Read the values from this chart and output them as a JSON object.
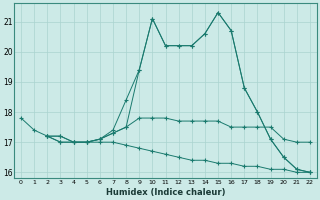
{
  "xlabel": "Humidex (Indice chaleur)",
  "ylabel": "",
  "background_color": "#cceae7",
  "grid_color": "#aad4d0",
  "line_color": "#1a7a6e",
  "xlim": [
    -0.5,
    22.5
  ],
  "ylim": [
    15.8,
    21.6
  ],
  "yticks": [
    16,
    17,
    18,
    19,
    20,
    21
  ],
  "xticks": [
    0,
    1,
    2,
    3,
    4,
    5,
    6,
    7,
    8,
    9,
    10,
    11,
    12,
    13,
    14,
    15,
    16,
    17,
    18,
    19,
    20,
    21,
    22
  ],
  "lines": [
    {
      "x": [
        0,
        1,
        2,
        3,
        4,
        5,
        6,
        7,
        8,
        9,
        10,
        11,
        12,
        13,
        14,
        15,
        16,
        17,
        18,
        19,
        20,
        21,
        22
      ],
      "y": [
        17.8,
        17.4,
        17.2,
        17.0,
        17.0,
        17.0,
        17.1,
        17.3,
        17.5,
        19.4,
        21.1,
        20.2,
        20.2,
        20.2,
        20.6,
        21.3,
        20.7,
        18.8,
        18.0,
        17.1,
        16.5,
        16.1,
        16.0
      ]
    },
    {
      "x": [
        2,
        3,
        4,
        5,
        6,
        7,
        8,
        9,
        10,
        11,
        12,
        13,
        14,
        15,
        16,
        17,
        18,
        19,
        20,
        21,
        22
      ],
      "y": [
        17.2,
        17.2,
        17.0,
        17.0,
        17.1,
        17.4,
        18.4,
        19.4,
        21.1,
        20.2,
        20.2,
        20.2,
        20.6,
        21.3,
        20.7,
        18.8,
        18.0,
        17.1,
        16.5,
        16.1,
        16.0
      ]
    },
    {
      "x": [
        2,
        3,
        4,
        5,
        6,
        7,
        8,
        9,
        10,
        11,
        12,
        13,
        14,
        15,
        16,
        17,
        18,
        19,
        20,
        21,
        22
      ],
      "y": [
        17.2,
        17.2,
        17.0,
        17.0,
        17.1,
        17.3,
        17.5,
        17.8,
        17.8,
        17.8,
        17.7,
        17.7,
        17.7,
        17.7,
        17.5,
        17.5,
        17.5,
        17.5,
        17.1,
        17.0,
        17.0
      ]
    },
    {
      "x": [
        2,
        3,
        4,
        5,
        6,
        7,
        8,
        9,
        10,
        11,
        12,
        13,
        14,
        15,
        16,
        17,
        18,
        19,
        20,
        21,
        22
      ],
      "y": [
        17.2,
        17.0,
        17.0,
        17.0,
        17.0,
        17.0,
        16.9,
        16.8,
        16.7,
        16.6,
        16.5,
        16.4,
        16.4,
        16.3,
        16.3,
        16.2,
        16.2,
        16.1,
        16.1,
        16.0,
        16.0
      ]
    }
  ]
}
